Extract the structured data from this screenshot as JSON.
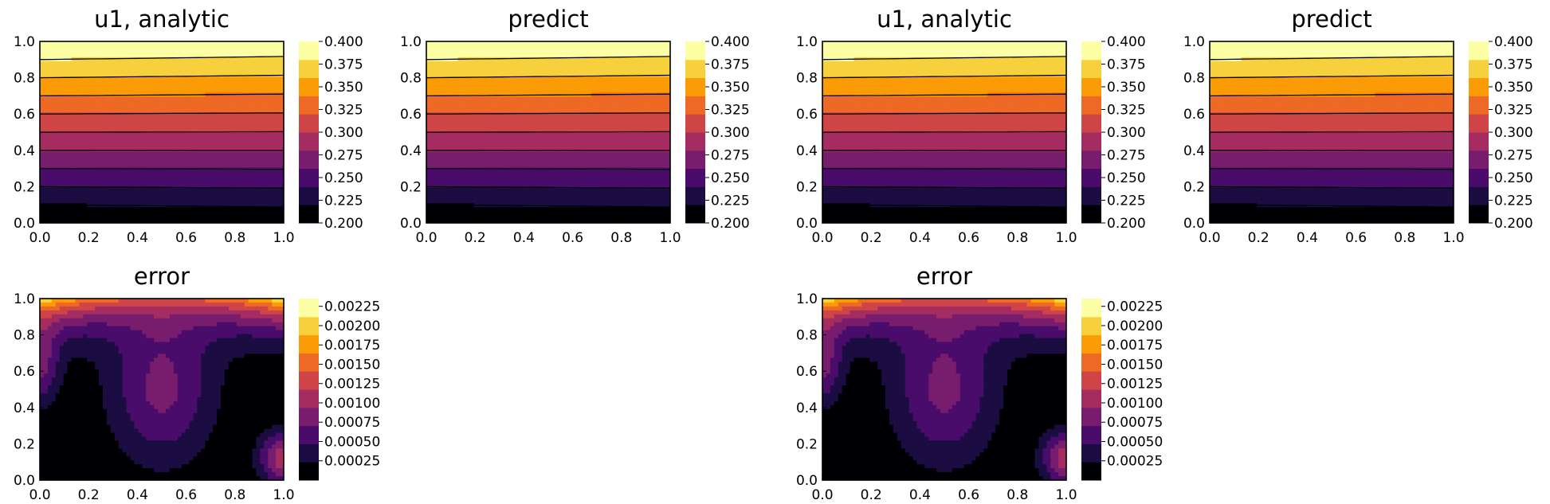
{
  "figure_groups": 2,
  "chart_data": [
    {
      "type": "contour",
      "group": 1,
      "title": "u1, analytic",
      "xlim": [
        0.0,
        1.0
      ],
      "ylim": [
        0.0,
        1.0
      ],
      "xticks": [
        "0.0",
        "0.2",
        "0.4",
        "0.6",
        "0.8",
        "1.0"
      ],
      "yticks": [
        "0.0",
        "0.2",
        "0.4",
        "0.6",
        "0.8",
        "1.0"
      ],
      "field": "u1",
      "levels": [
        0.2,
        0.4
      ],
      "colorbar": {
        "ticks": [
          "0.200",
          "0.225",
          "0.250",
          "0.275",
          "0.300",
          "0.325",
          "0.350",
          "0.375",
          "0.400"
        ]
      },
      "colormap": "inferno"
    },
    {
      "type": "contour",
      "group": 1,
      "title": "predict",
      "xlim": [
        0.0,
        1.0
      ],
      "ylim": [
        0.0,
        1.0
      ],
      "xticks": [
        "0.0",
        "0.2",
        "0.4",
        "0.6",
        "0.8",
        "1.0"
      ],
      "yticks": [
        "0.0",
        "0.2",
        "0.4",
        "0.6",
        "0.8",
        "1.0"
      ],
      "field": "u1",
      "levels": [
        0.2,
        0.4
      ],
      "colorbar": {
        "ticks": [
          "0.200",
          "0.225",
          "0.250",
          "0.275",
          "0.300",
          "0.325",
          "0.350",
          "0.375",
          "0.400"
        ]
      },
      "colormap": "inferno"
    },
    {
      "type": "contour",
      "group": 1,
      "title": "error",
      "xlim": [
        0.0,
        1.0
      ],
      "ylim": [
        0.0,
        1.0
      ],
      "xticks": [
        "0.0",
        "0.2",
        "0.4",
        "0.6",
        "0.8",
        "1.0"
      ],
      "yticks": [
        "0.0",
        "0.2",
        "0.4",
        "0.6",
        "0.8",
        "1.0"
      ],
      "field": "error",
      "levels": [
        0.0,
        0.00235
      ],
      "colorbar": {
        "ticks": [
          "0.00025",
          "0.00050",
          "0.00075",
          "0.00100",
          "0.00125",
          "0.00150",
          "0.00175",
          "0.00200",
          "0.00225"
        ]
      },
      "colormap": "inferno"
    },
    {
      "type": "contour",
      "group": 2,
      "title": "u1, analytic",
      "xlim": [
        0.0,
        1.0
      ],
      "ylim": [
        0.0,
        1.0
      ],
      "xticks": [
        "0.0",
        "0.2",
        "0.4",
        "0.6",
        "0.8",
        "1.0"
      ],
      "yticks": [
        "0.0",
        "0.2",
        "0.4",
        "0.6",
        "0.8",
        "1.0"
      ],
      "field": "u1",
      "levels": [
        0.2,
        0.4
      ],
      "colorbar": {
        "ticks": [
          "0.200",
          "0.225",
          "0.250",
          "0.275",
          "0.300",
          "0.325",
          "0.350",
          "0.375",
          "0.400"
        ]
      },
      "colormap": "inferno"
    },
    {
      "type": "contour",
      "group": 2,
      "title": "predict",
      "xlim": [
        0.0,
        1.0
      ],
      "ylim": [
        0.0,
        1.0
      ],
      "xticks": [
        "0.0",
        "0.2",
        "0.4",
        "0.6",
        "0.8",
        "1.0"
      ],
      "yticks": [
        "0.0",
        "0.2",
        "0.4",
        "0.6",
        "0.8",
        "1.0"
      ],
      "field": "u1",
      "levels": [
        0.2,
        0.4
      ],
      "colorbar": {
        "ticks": [
          "0.200",
          "0.225",
          "0.250",
          "0.275",
          "0.300",
          "0.325",
          "0.350",
          "0.375",
          "0.400"
        ]
      },
      "colormap": "inferno"
    },
    {
      "type": "contour",
      "group": 2,
      "title": "error",
      "xlim": [
        0.0,
        1.0
      ],
      "ylim": [
        0.0,
        1.0
      ],
      "xticks": [
        "0.0",
        "0.2",
        "0.4",
        "0.6",
        "0.8",
        "1.0"
      ],
      "yticks": [
        "0.0",
        "0.2",
        "0.4",
        "0.6",
        "0.8",
        "1.0"
      ],
      "field": "error",
      "levels": [
        0.0,
        0.00235
      ],
      "colorbar": {
        "ticks": [
          "0.00025",
          "0.00050",
          "0.00075",
          "0.00100",
          "0.00125",
          "0.00150",
          "0.00175",
          "0.00200",
          "0.00225"
        ]
      },
      "colormap": "inferno"
    }
  ],
  "colors": {
    "inferno_stops": [
      "#000004",
      "#1b0c41",
      "#4a0c6b",
      "#781c6d",
      "#a52c60",
      "#cf4446",
      "#ed6925",
      "#fb9b06",
      "#f7d13d",
      "#fcffa4"
    ],
    "axis": "#000000",
    "background": "#ffffff"
  }
}
